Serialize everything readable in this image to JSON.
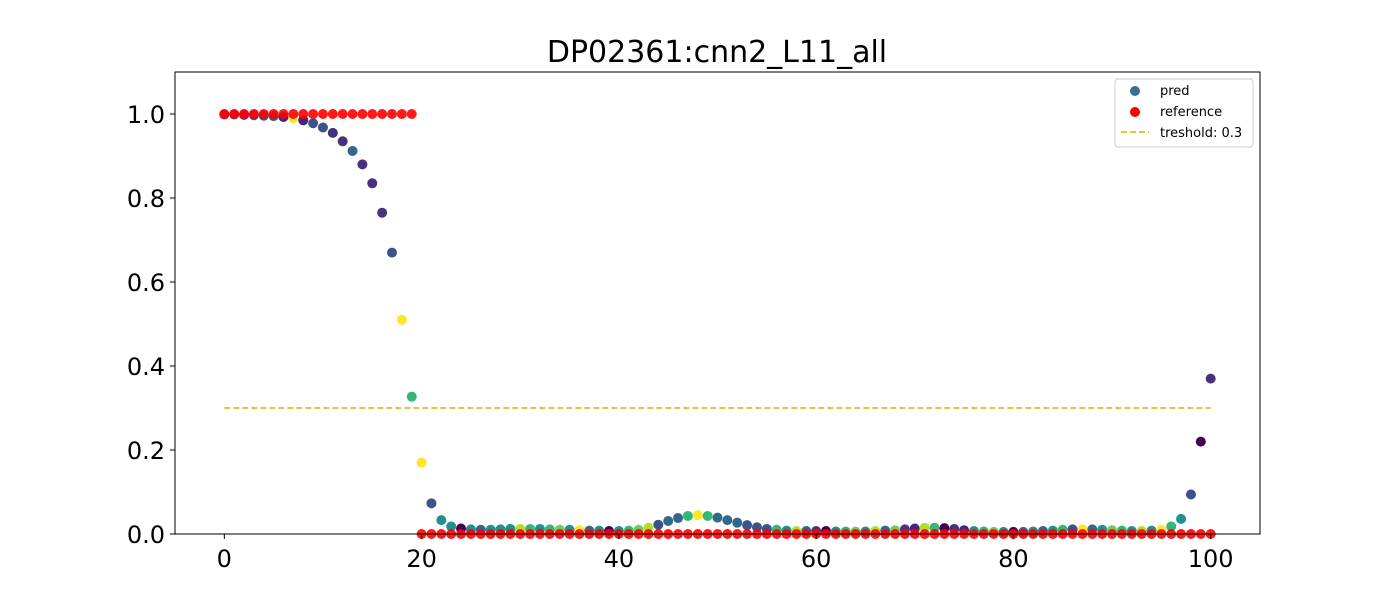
{
  "chart_data": {
    "type": "scatter",
    "title": "DP02361:cnn2_L11_all",
    "xlabel": "",
    "ylabel": "",
    "xlim": [
      -5,
      105
    ],
    "ylim": [
      0,
      1.1
    ],
    "x_ticks": [
      0,
      20,
      40,
      60,
      80,
      100
    ],
    "y_ticks": [
      0.0,
      0.2,
      0.4,
      0.6,
      0.8,
      1.0
    ],
    "x_tick_labels": [
      "0",
      "20",
      "40",
      "60",
      "80",
      "100"
    ],
    "y_tick_labels": [
      "0.0",
      "0.2",
      "0.4",
      "0.6",
      "0.8",
      "1.0"
    ],
    "grid": false,
    "legend": {
      "position": "top-right",
      "entries": [
        "pred",
        "reference",
        "treshold: 0.3"
      ]
    },
    "series": [
      {
        "name": "pred",
        "marker_color": "#3b6e93",
        "x": [
          0,
          1,
          2,
          3,
          4,
          5,
          6,
          7,
          8,
          9,
          10,
          11,
          12,
          13,
          14,
          15,
          16,
          17,
          18,
          19,
          20,
          21,
          22,
          23,
          24,
          25,
          26,
          27,
          28,
          29,
          30,
          31,
          32,
          33,
          34,
          35,
          36,
          37,
          38,
          39,
          40,
          41,
          42,
          43,
          44,
          45,
          46,
          47,
          48,
          49,
          50,
          51,
          52,
          53,
          54,
          55,
          56,
          57,
          58,
          59,
          60,
          61,
          62,
          63,
          64,
          65,
          66,
          67,
          68,
          69,
          70,
          71,
          72,
          73,
          74,
          75,
          76,
          77,
          78,
          79,
          80,
          81,
          82,
          83,
          84,
          85,
          86,
          87,
          88,
          89,
          90,
          91,
          92,
          93,
          94,
          95,
          96,
          97,
          98,
          99,
          100
        ],
        "y": [
          0.999,
          0.999,
          0.998,
          0.997,
          0.996,
          0.995,
          0.993,
          0.99,
          0.985,
          0.978,
          0.968,
          0.955,
          0.935,
          0.912,
          0.88,
          0.835,
          0.765,
          0.67,
          0.51,
          0.327,
          0.17,
          0.073,
          0.033,
          0.018,
          0.013,
          0.011,
          0.01,
          0.01,
          0.011,
          0.012,
          0.012,
          0.012,
          0.012,
          0.011,
          0.01,
          0.01,
          0.009,
          0.008,
          0.008,
          0.007,
          0.007,
          0.008,
          0.01,
          0.015,
          0.022,
          0.031,
          0.038,
          0.043,
          0.045,
          0.043,
          0.039,
          0.033,
          0.027,
          0.021,
          0.016,
          0.012,
          0.01,
          0.008,
          0.007,
          0.007,
          0.007,
          0.007,
          0.006,
          0.006,
          0.006,
          0.006,
          0.007,
          0.008,
          0.009,
          0.011,
          0.013,
          0.015,
          0.015,
          0.014,
          0.012,
          0.009,
          0.007,
          0.006,
          0.005,
          0.005,
          0.005,
          0.005,
          0.006,
          0.007,
          0.008,
          0.01,
          0.011,
          0.011,
          0.011,
          0.01,
          0.009,
          0.008,
          0.007,
          0.007,
          0.008,
          0.01,
          0.018,
          0.036,
          0.094,
          0.22,
          0.37
        ],
        "point_colors": [
          "#46327e",
          "#3b528b",
          "#46327e",
          "#3b528b",
          "#3b528b",
          "#3b528b",
          "#482475",
          "#fde725",
          "#482475",
          "#3b528b",
          "#3b528b",
          "#46327e",
          "#46327e",
          "#31688e",
          "#46327e",
          "#46327e",
          "#46327e",
          "#3b528b",
          "#fde725",
          "#35b779",
          "#fde725",
          "#3b528b",
          "#21918c",
          "#21918c",
          "#440154",
          "#21918c",
          "#31688e",
          "#21918c",
          "#21918c",
          "#21918c",
          "#b5de2b",
          "#35b779",
          "#21918c",
          "#35b779",
          "#6ece58",
          "#21918c",
          "#fde725",
          "#31688e",
          "#21918c",
          "#440154",
          "#21918c",
          "#35b779",
          "#6ece58",
          "#b5de2b",
          "#3b528b",
          "#31688e",
          "#31688e",
          "#35b779",
          "#fde725",
          "#35b779",
          "#31688e",
          "#31688e",
          "#31688e",
          "#3b528b",
          "#3b528b",
          "#3b528b",
          "#35b779",
          "#21918c",
          "#b5de2b",
          "#31688e",
          "#46327e",
          "#440154",
          "#21918c",
          "#35b779",
          "#6ece58",
          "#21918c",
          "#b5de2b",
          "#31688e",
          "#6ece58",
          "#46327e",
          "#482475",
          "#b5de2b",
          "#35b779",
          "#440154",
          "#46327e",
          "#482475",
          "#21918c",
          "#35b779",
          "#6ece58",
          "#21918c",
          "#440154",
          "#31688e",
          "#21918c",
          "#31688e",
          "#21918c",
          "#35b779",
          "#3b528b",
          "#fde725",
          "#31688e",
          "#21918c",
          "#6ece58",
          "#35b779",
          "#21918c",
          "#b5de2b",
          "#21918c",
          "#fde725",
          "#35b779",
          "#21918c",
          "#3b528b",
          "#440154",
          "#46327e"
        ]
      },
      {
        "name": "reference",
        "marker_color": "#ff0000",
        "x": [
          0,
          1,
          2,
          3,
          4,
          5,
          6,
          7,
          8,
          9,
          10,
          11,
          12,
          13,
          14,
          15,
          16,
          17,
          18,
          19,
          20,
          21,
          22,
          23,
          24,
          25,
          26,
          27,
          28,
          29,
          30,
          31,
          32,
          33,
          34,
          35,
          36,
          37,
          38,
          39,
          40,
          41,
          42,
          43,
          44,
          45,
          46,
          47,
          48,
          49,
          50,
          51,
          52,
          53,
          54,
          55,
          56,
          57,
          58,
          59,
          60,
          61,
          62,
          63,
          64,
          65,
          66,
          67,
          68,
          69,
          70,
          71,
          72,
          73,
          74,
          75,
          76,
          77,
          78,
          79,
          80,
          81,
          82,
          83,
          84,
          85,
          86,
          87,
          88,
          89,
          90,
          91,
          92,
          93,
          94,
          95,
          96,
          97,
          98,
          99,
          100
        ],
        "y": [
          1,
          1,
          1,
          1,
          1,
          1,
          1,
          1,
          1,
          1,
          1,
          1,
          1,
          1,
          1,
          1,
          1,
          1,
          1,
          1,
          0,
          0,
          0,
          0,
          0,
          0,
          0,
          0,
          0,
          0,
          0,
          0,
          0,
          0,
          0,
          0,
          0,
          0,
          0,
          0,
          0,
          0,
          0,
          0,
          0,
          0,
          0,
          0,
          0,
          0,
          0,
          0,
          0,
          0,
          0,
          0,
          0,
          0,
          0,
          0,
          0,
          0,
          0,
          0,
          0,
          0,
          0,
          0,
          0,
          0,
          0,
          0,
          0,
          0,
          0,
          0,
          0,
          0,
          0,
          0,
          0,
          0,
          0,
          0,
          0,
          0,
          0,
          0,
          0,
          0,
          0,
          0,
          0,
          0,
          0,
          0,
          0,
          0,
          0,
          0,
          0
        ]
      },
      {
        "name": "treshold: 0.3",
        "line_color": "#bfbf00",
        "line_style": "dashed",
        "x": [
          0,
          100
        ],
        "y": [
          0.3,
          0.3
        ]
      }
    ]
  }
}
